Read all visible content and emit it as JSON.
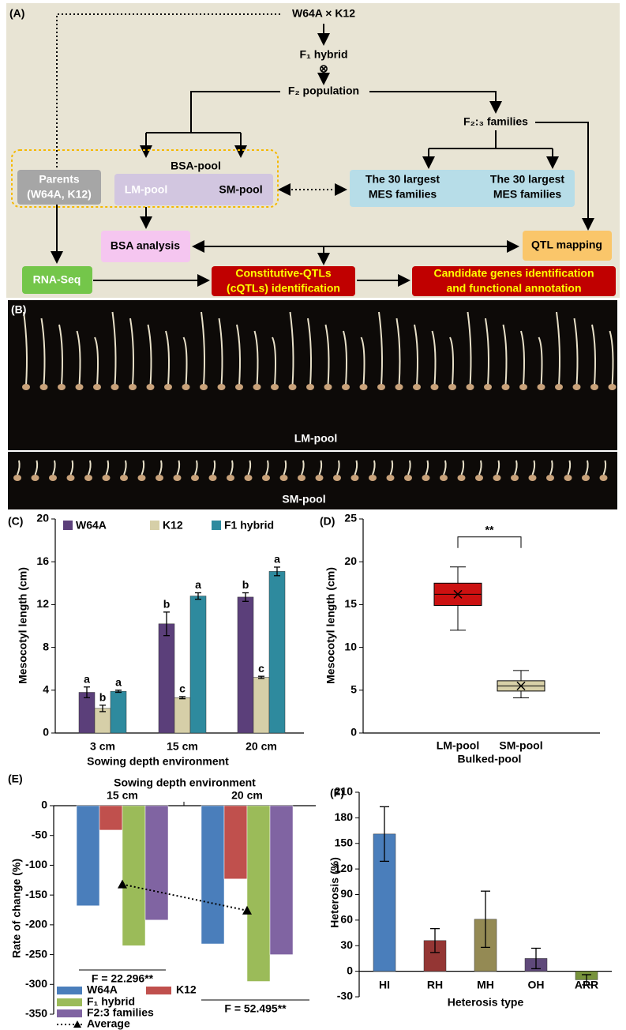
{
  "diagram": {
    "panel": "(A)",
    "nodes": [
      {
        "label": "W64A × K12"
      },
      {
        "label": "F₁ hybrid"
      },
      {
        "label": "⊗"
      },
      {
        "label": "F₂ population"
      },
      {
        "label": "F₂:₃ families"
      },
      {
        "label": "BSA-pool"
      },
      {
        "lines": [
          "Parents",
          "(W64A, K12)"
        ]
      },
      {
        "label": "LM-pool"
      },
      {
        "label": "SM-pool"
      },
      {
        "lines": [
          "The 30 largest",
          "MES families"
        ]
      },
      {
        "lines": [
          "The 30 largest",
          "MES families"
        ]
      },
      {
        "label": "BSA analysis"
      },
      {
        "label": "QTL mapping"
      },
      {
        "label": "RNA-Seq"
      },
      {
        "lines": [
          "Constitutive-QTLs",
          "(cQTLs) identification"
        ]
      },
      {
        "lines": [
          "Candidate genes identification",
          "and functional annotation"
        ]
      }
    ]
  },
  "photo": {
    "panel": "(B)",
    "labels": [
      "LM-pool",
      "SM-pool"
    ]
  },
  "chart_data": [
    {
      "type": "bar",
      "panel": "(C)",
      "x_title": "Sowing depth environment",
      "y_title": "Mesocotyl length (cm)",
      "categories": [
        "3 cm",
        "15 cm",
        "20 cm"
      ],
      "series": [
        {
          "name": "W64A",
          "color": "#5b3f7a",
          "values": [
            3.8,
            10.2,
            12.7
          ],
          "errors": [
            0.5,
            1.1,
            0.4
          ],
          "letters": [
            "a",
            "b",
            "b"
          ]
        },
        {
          "name": "K12",
          "color": "#d6cfa8",
          "values": [
            2.3,
            3.3,
            5.2
          ],
          "errors": [
            0.3,
            0.1,
            0.1
          ],
          "letters": [
            "b",
            "c",
            "c"
          ]
        },
        {
          "name": "F1 hybrid",
          "color": "#2e8a9e",
          "values": [
            3.9,
            12.8,
            15.1
          ],
          "errors": [
            0.1,
            0.3,
            0.4
          ],
          "letters": [
            "a",
            "a",
            "a"
          ]
        }
      ],
      "ylim": [
        0,
        20
      ],
      "yticks": [
        0,
        4,
        8,
        12,
        16,
        20
      ]
    },
    {
      "type": "box",
      "panel": "(D)",
      "x_title": "Bulked-pool",
      "y_title": "Mesocotyl length (cm)",
      "categories": [
        "LM-pool",
        "SM-pool"
      ],
      "colors": [
        "#cc1111",
        "#d8d0a8"
      ],
      "boxes": [
        {
          "min": 12,
          "q1": 14.9,
          "median": 16.2,
          "q3": 17.5,
          "max": 19.4,
          "mean": 16.2
        },
        {
          "min": 4.1,
          "q1": 4.9,
          "median": 5.5,
          "q3": 6.1,
          "max": 7.3,
          "mean": 5.5
        }
      ],
      "annotation": "**",
      "ylim": [
        0,
        25
      ],
      "yticks": [
        0,
        5,
        10,
        15,
        20,
        25
      ]
    },
    {
      "type": "bar",
      "panel": "(E)",
      "x_title": "Sowing depth environment",
      "y_title": "Rate of change (%)",
      "categories": [
        "15 cm",
        "20 cm"
      ],
      "series": [
        {
          "name": "W64A",
          "color": "#4a7ebb",
          "values": [
            -168,
            -232
          ]
        },
        {
          "name": "K12",
          "color": "#c0504d",
          "values": [
            -41,
            -123
          ]
        },
        {
          "name": "F₁ hybrid",
          "color": "#9bbb59",
          "values": [
            -235,
            -295
          ]
        },
        {
          "name": "F2:3 families",
          "color": "#8064a2",
          "values": [
            -192,
            -250
          ]
        }
      ],
      "average": {
        "name": "Average",
        "color": "#000000",
        "values": [
          -132,
          -176
        ]
      },
      "annotations": [
        "F = 22.296**",
        "F = 52.495**"
      ],
      "ylim": [
        -350,
        0
      ],
      "yticks": [
        0,
        -50,
        -100,
        -150,
        -200,
        -250,
        -300,
        -350
      ]
    },
    {
      "type": "bar",
      "panel": "(F)",
      "x_title": "Heterosis type",
      "y_title": "Heterosis (%)",
      "categories": [
        "HI",
        "RH",
        "MH",
        "OH",
        "ARR"
      ],
      "values": [
        161,
        36,
        61,
        15,
        -10
      ],
      "errors": [
        32,
        14,
        33,
        12,
        6
      ],
      "colors": [
        "#4a7ebb",
        "#943634",
        "#948a54",
        "#5f497a",
        "#77933c"
      ],
      "ylim": [
        -30,
        210
      ],
      "yticks": [
        -30,
        0,
        30,
        60,
        90,
        120,
        150,
        180,
        210
      ]
    }
  ]
}
